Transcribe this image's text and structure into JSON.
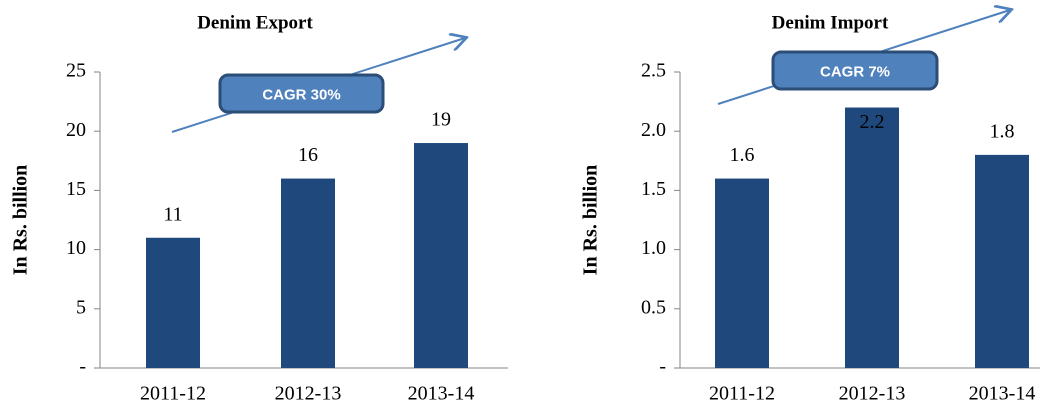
{
  "chart_data": [
    {
      "type": "bar",
      "title": "Denim Export",
      "y_label": "In Rs. billion",
      "categories": [
        "2011-12",
        "2012-13",
        "2013-14"
      ],
      "values": [
        11,
        16,
        19
      ],
      "color": "#1f497d",
      "ylim": [
        0,
        25
      ],
      "yticks": [
        {
          "value": 0,
          "label": "-"
        },
        5,
        10,
        15,
        20,
        25
      ],
      "annotation": "CAGR 30%"
    },
    {
      "type": "bar",
      "title": "Denim Import",
      "y_label": "In Rs. billion",
      "categories": [
        "2011-12",
        "2012-13",
        "2013-14"
      ],
      "values": [
        1.6,
        2.2,
        1.8
      ],
      "color": "#1f497d",
      "ylim": [
        0,
        2.5
      ],
      "yticks": [
        {
          "value": 0,
          "label": "-"
        },
        0.5,
        {
          "value": 1.0,
          "label": "1.0"
        },
        1.5,
        {
          "value": 2.0,
          "label": "2.0"
        },
        2.5
      ],
      "annotation": "CAGR 7%"
    }
  ]
}
